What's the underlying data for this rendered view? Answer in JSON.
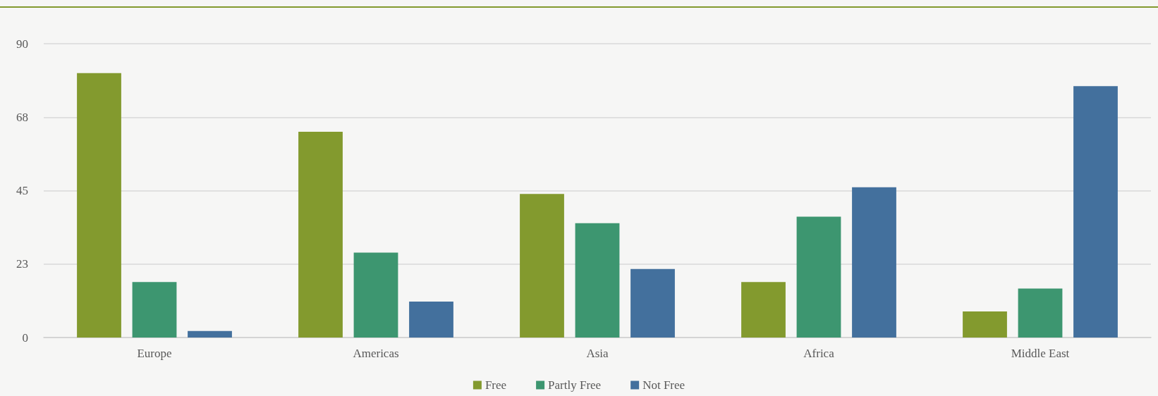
{
  "chart_data": {
    "type": "bar",
    "categories": [
      "Europe",
      "Americas",
      "Asia",
      "Africa",
      "Middle East"
    ],
    "series": [
      {
        "name": "Free",
        "color": "#839a2e",
        "values": [
          81,
          63,
          44,
          17,
          8
        ]
      },
      {
        "name": "Partly Free",
        "color": "#3d9670",
        "values": [
          17,
          26,
          35,
          37,
          15
        ]
      },
      {
        "name": "Not Free",
        "color": "#43709d",
        "values": [
          2,
          11,
          21,
          46,
          77
        ]
      }
    ],
    "ylim": [
      0,
      90
    ],
    "yticks": [
      0,
      {
        "value": 22.5,
        "label": "23"
      },
      45,
      {
        "value": 67.5,
        "label": "68"
      },
      90
    ],
    "grid": "y",
    "legend": "bottom"
  }
}
